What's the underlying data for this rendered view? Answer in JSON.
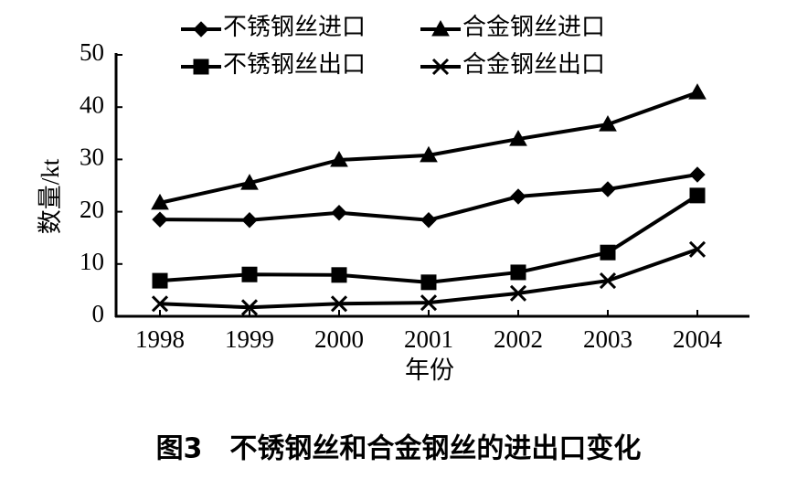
{
  "chart_data": {
    "type": "line",
    "caption": "图3　不锈钢丝和合金钢丝的进出口变化",
    "x_label": "年份",
    "y_label": "数量/kt",
    "categories": [
      "1998",
      "1999",
      "2000",
      "2001",
      "2002",
      "2003",
      "2004"
    ],
    "ylim": [
      0,
      50
    ],
    "yticks": [
      0,
      10,
      20,
      30,
      40,
      50
    ],
    "series": [
      {
        "name": "不锈钢丝进口",
        "color": "#000000",
        "marker": "diamond",
        "values": [
          18.5,
          18.4,
          19.8,
          18.4,
          22.9,
          24.3,
          27.1
        ]
      },
      {
        "name": "合金钢丝进口",
        "color": "#000000",
        "marker": "triangle",
        "values": [
          21.7,
          25.5,
          29.9,
          30.8,
          33.9,
          36.7,
          42.8
        ]
      },
      {
        "name": "不锈钢丝出口",
        "color": "#000000",
        "marker": "square",
        "values": [
          6.8,
          8.0,
          7.9,
          6.5,
          8.4,
          12.2,
          23.1
        ]
      },
      {
        "name": "合金钢丝出口",
        "color": "#000000",
        "marker": "x",
        "values": [
          2.4,
          1.7,
          2.4,
          2.6,
          4.4,
          6.8,
          12.8
        ]
      }
    ]
  }
}
